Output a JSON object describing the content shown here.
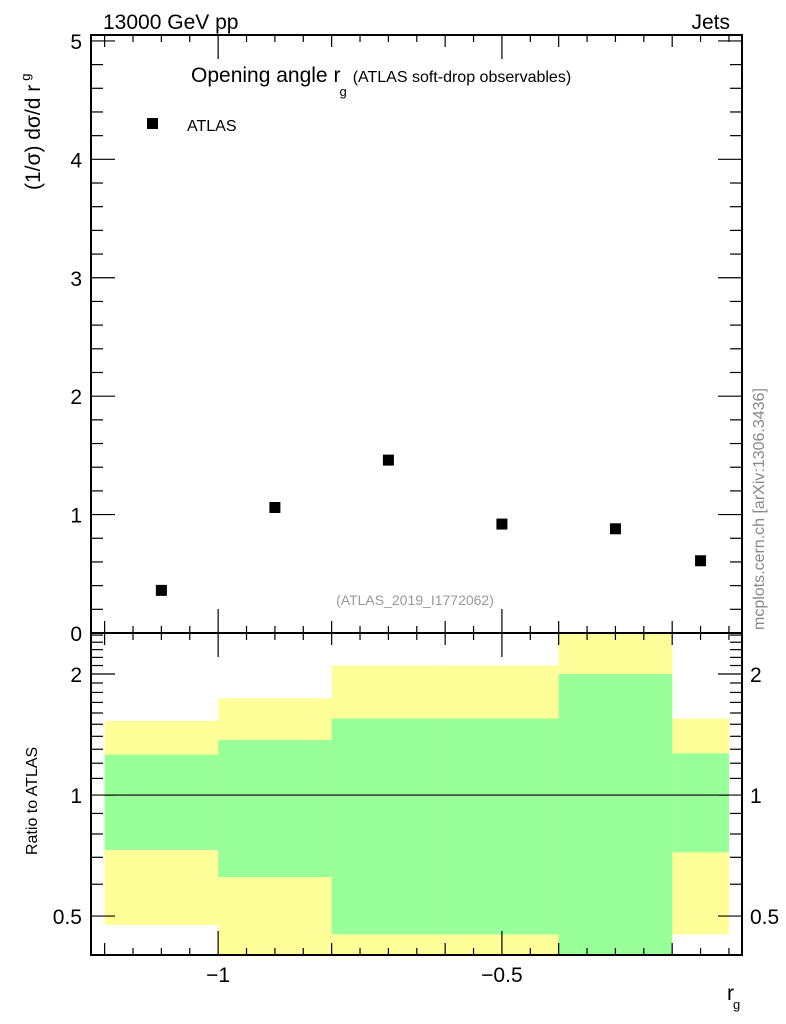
{
  "chart_data": [
    {
      "type": "scatter",
      "header_left": "13000 GeV pp",
      "header_right": "Jets",
      "title_main": "Opening angle r",
      "title_sub": "g",
      "title_rest": "(ATLAS soft-drop observables)",
      "ylabel": "(1/σ) dσ/d r",
      "ylabel_sub": "g",
      "ylim": [
        0,
        5.05
      ],
      "yticks": [
        0,
        1,
        2,
        3,
        4,
        5
      ],
      "ytick_labels": [
        "0",
        "1",
        "2",
        "3",
        "4",
        "5"
      ],
      "xlim": [
        -1.224,
        -0.077
      ],
      "legend": [
        {
          "name": "ATLAS",
          "marker": "square",
          "color": "#000000"
        }
      ],
      "legend_placement": "top-left",
      "series": [
        {
          "name": "ATLAS",
          "x": [
            -1.1,
            -0.9,
            -0.7,
            -0.5,
            -0.3,
            -0.15
          ],
          "y": [
            0.36,
            1.06,
            1.46,
            0.92,
            0.88,
            0.61
          ]
        }
      ],
      "annotation": "(ATLAS_2019_I1772062)",
      "side_label": "mcplots.cern.ch [arXiv:1306.3436]"
    },
    {
      "type": "area",
      "ylabel": "Ratio to ATLAS",
      "xlabel": "r",
      "xlabel_sub": "g",
      "yscale": "log",
      "ylim": [
        0.4,
        2.53
      ],
      "yticks": [
        0.5,
        1,
        2
      ],
      "ytick_labels": [
        "0.5",
        "1",
        "2"
      ],
      "xlim": [
        -1.224,
        -0.077
      ],
      "xticks": [
        -1,
        -0.5
      ],
      "xtick_labels": [
        "−1",
        "−0.5"
      ],
      "bin_edges": [
        -1.2,
        -1.0,
        -0.8,
        -0.6,
        -0.4,
        -0.2,
        -0.1
      ],
      "bands": [
        {
          "name": "total uncertainty",
          "color": "#ffff99",
          "low": [
            0.475,
            0.38,
            0.38,
            0.38,
            0.38,
            0.45
          ],
          "high": [
            1.53,
            1.74,
            2.1,
            2.1,
            2.6,
            1.55
          ]
        },
        {
          "name": "stat uncertainty",
          "color": "#99ff99",
          "low": [
            0.73,
            0.625,
            0.45,
            0.45,
            0.38,
            0.72
          ],
          "high": [
            1.26,
            1.37,
            1.55,
            1.55,
            2.0,
            1.27
          ]
        }
      ],
      "reference_line": 1
    }
  ]
}
